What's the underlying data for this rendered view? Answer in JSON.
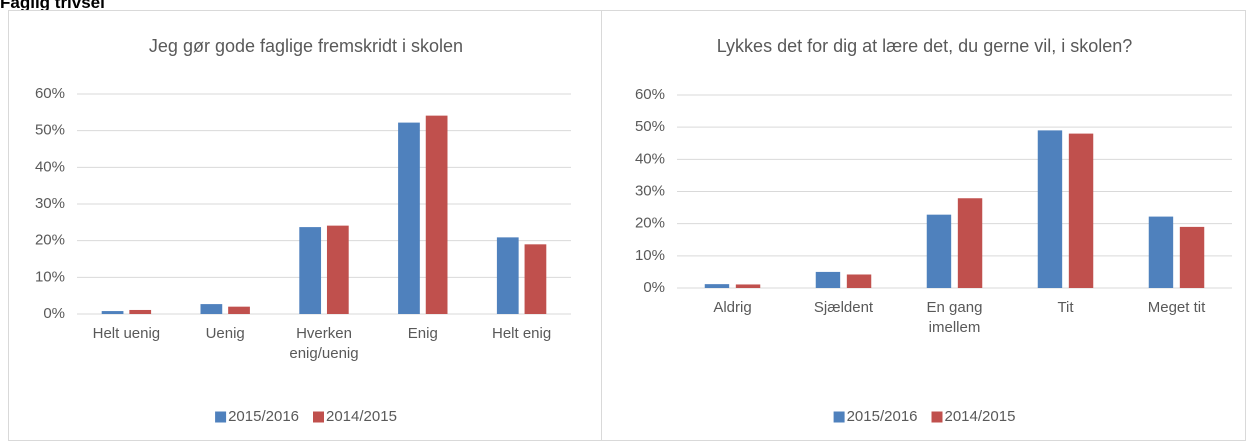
{
  "title": "Faglig trivsel",
  "chart_data": [
    {
      "type": "bar",
      "title": "Jeg gør gode faglige fremskridt i skolen",
      "categories": [
        "Helt uenig",
        "Uenig",
        "Hverken enig/uenig",
        "Enig",
        "Helt enig"
      ],
      "series": [
        {
          "name": "2015/2016",
          "color": "#4f81bd",
          "values": [
            0.8,
            2.7,
            23.7,
            52.2,
            20.9
          ]
        },
        {
          "name": "2014/2015",
          "color": "#c0504d",
          "values": [
            1.1,
            2.0,
            24.1,
            54.1,
            19.0
          ]
        }
      ],
      "ylim": [
        0,
        60
      ],
      "yticks": [
        {
          "value": 0,
          "label": "0%"
        },
        {
          "value": 10,
          "label": "10%"
        },
        {
          "value": 20,
          "label": "20%"
        },
        {
          "value": 30,
          "label": "30%"
        },
        {
          "value": 40,
          "label": "40%"
        },
        {
          "value": 50,
          "label": "50%"
        },
        {
          "value": 60,
          "label": "60%"
        }
      ],
      "grid": true,
      "legend": "bottom"
    },
    {
      "type": "bar",
      "title": "Lykkes det for dig at lære det, du gerne vil, i skolen?",
      "categories": [
        "Aldrig",
        "Sjældent",
        "En gang imellem",
        "Tit",
        "Meget tit"
      ],
      "series": [
        {
          "name": "2015/2016",
          "color": "#4f81bd",
          "values": [
            1.2,
            5.0,
            22.8,
            49.0,
            22.2
          ]
        },
        {
          "name": "2014/2015",
          "color": "#c0504d",
          "values": [
            1.1,
            4.2,
            27.9,
            48.0,
            19.0
          ]
        }
      ],
      "ylim": [
        0,
        60
      ],
      "yticks": [
        {
          "value": 0,
          "label": "0%"
        },
        {
          "value": 10,
          "label": "10%"
        },
        {
          "value": 20,
          "label": "20%"
        },
        {
          "value": 30,
          "label": "30%"
        },
        {
          "value": 40,
          "label": "40%"
        },
        {
          "value": 50,
          "label": "50%"
        },
        {
          "value": 60,
          "label": "60%"
        }
      ],
      "grid": true,
      "legend": "bottom"
    }
  ]
}
